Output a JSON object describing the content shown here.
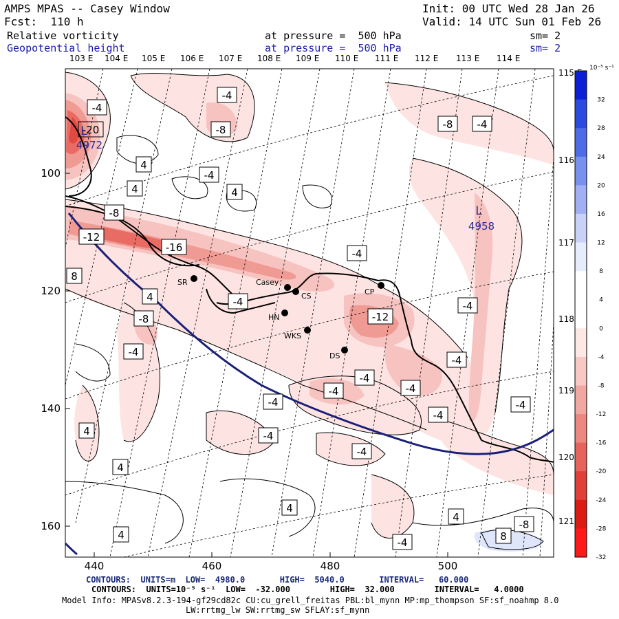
{
  "header": {
    "model": "AMPS MPAS -- Casey Window",
    "init": "Init: 00 UTC Wed 28 Jan 26",
    "fcst": "Fcst:  110 h",
    "valid": "Valid: 14 UTC Sun 01 Feb 26",
    "field1": "Relative vorticity",
    "field1_level": "at pressure =  500 hPa",
    "field1_sm": "sm= 2",
    "field2": "Geopotential height",
    "field2_level": "at pressure =  500 hPa",
    "field2_sm": "sm= 2"
  },
  "longitude_labels_top": [
    "103 E",
    "104 E",
    "105 E",
    "106 E",
    "107 E",
    "108 E",
    "109 E",
    "110 E",
    "111 E",
    "112 E",
    "113 E",
    "114 E"
  ],
  "longitude_labels_right": [
    "115 E",
    "116 E",
    "117 E",
    "118 E",
    "119 E",
    "120 E",
    "121 E"
  ],
  "x_axis_ticks": [
    "440",
    "460",
    "480",
    "500"
  ],
  "y_axis_ticks": [
    "100",
    "120",
    "140",
    "160"
  ],
  "stations": [
    "SR",
    "Casey",
    "CS",
    "CP",
    "HN",
    "WKS",
    "DS"
  ],
  "contour_labels": [
    "-4",
    "-4",
    "-4",
    "-4",
    "-8",
    "-8",
    "-8",
    "-8",
    "-12",
    "-12",
    "-16",
    "-20",
    "-4",
    "4",
    "4",
    "4",
    "4",
    "4",
    "4",
    "4",
    "4",
    "8",
    "8",
    "-4",
    "-4",
    "-4",
    "-4",
    "-4",
    "-4",
    "-4",
    "-4",
    "-4",
    "-4",
    "-4",
    "-4",
    "-8",
    "-4",
    "4"
  ],
  "pressure_centers": [
    {
      "letter": "L",
      "value": "4972"
    },
    {
      "letter": "L",
      "value": "4958"
    }
  ],
  "colorbar": {
    "units": "10⁻⁵ s⁻¹",
    "ticks": [
      "32",
      "28",
      "24",
      "20",
      "16",
      "12",
      "8",
      "4",
      "0",
      "-4",
      "-8",
      "-12",
      "-16",
      "-20",
      "-24",
      "-28",
      "-32"
    ],
    "colors": [
      "#0b1fd6",
      "#2a4ae0",
      "#4e6ce8",
      "#7890ee",
      "#a0b0f2",
      "#c8d2f8",
      "#e6ecfc",
      "#ffffff",
      "#ffffff",
      "#fde8e6",
      "#f8c8c4",
      "#f2a8a2",
      "#ec8880",
      "#e6645c",
      "#e04038",
      "#dc1c14",
      "#ff1a1a"
    ]
  },
  "footer": {
    "contours1": "CONTOURS:  UNITS=m  LOW=  4980.0       HIGH=  5040.0       INTERVAL=   60.000",
    "contours2": "CONTOURS:  UNITS=10⁻⁵ s⁻¹  LOW=  -32.000        HIGH=  32.000        INTERVAL=   4.0000",
    "model_info": "Model Info: MPASv8.2.3-194-gf29cd82c CU:cu_grell_freitas PBL:bl_mynn MP:mp_thompson SF:sf_noahmp 8.0",
    "model_info2": "LW:rrtmg_lw SW:rrtmg_sw SFLAY:sf_mynn"
  }
}
